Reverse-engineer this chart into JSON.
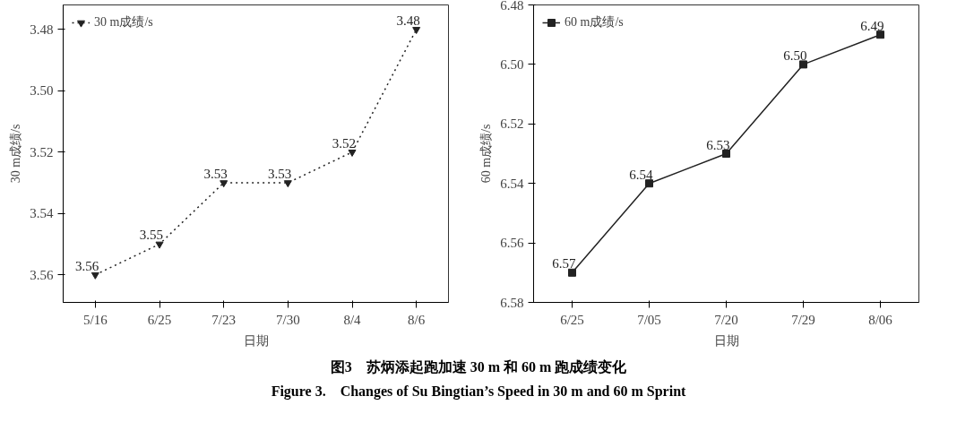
{
  "chart_data": [
    {
      "type": "line",
      "xlabel": "日期",
      "ylabel": "30 m成绩/s",
      "categories": [
        "5/16",
        "6/25",
        "7/23",
        "7/30",
        "8/4",
        "8/6"
      ],
      "series": [
        {
          "name": "30 m成绩/s",
          "color": "#222222",
          "values": [
            3.56,
            3.55,
            3.53,
            3.53,
            3.52,
            3.48
          ],
          "value_labels": [
            "3.56",
            "3.55",
            "3.53",
            "3.53",
            "3.52",
            "3.48"
          ]
        }
      ],
      "ylim": [
        3.569,
        3.472
      ],
      "yticks": [
        3.48,
        {
          "value": 3.5,
          "label": "3.50"
        },
        3.52,
        3.54,
        3.56
      ],
      "marker": "triangle",
      "line_style": "dotted",
      "legend": "top left",
      "grid": false,
      "annotations": [
        "图3　苏炳添起跑加速 30 m 和 60 m 跑成绩变化",
        "Figure 3.　Changes of Su Bingtian’s Speed in 30 m and 60 m Sprint"
      ]
    },
    {
      "type": "line",
      "xlabel": "日期",
      "ylabel": "60 m成绩/s",
      "categories": [
        "6/25",
        "7/05",
        "7/20",
        "7/29",
        "8/06"
      ],
      "series": [
        {
          "name": "60 m成绩/s",
          "color": "#222222",
          "values": [
            6.57,
            6.54,
            6.53,
            6.5,
            6.49
          ],
          "value_labels": [
            "6.57",
            "6.54",
            "6.53",
            "6.50",
            "6.49"
          ]
        }
      ],
      "ylim": [
        6.58,
        6.48
      ],
      "yticks": [
        6.48,
        {
          "value": 6.5,
          "label": "6.50"
        },
        6.52,
        6.54,
        6.56,
        6.58
      ],
      "marker": "square",
      "line_style": "solid",
      "legend": "top left",
      "grid": false
    }
  ]
}
